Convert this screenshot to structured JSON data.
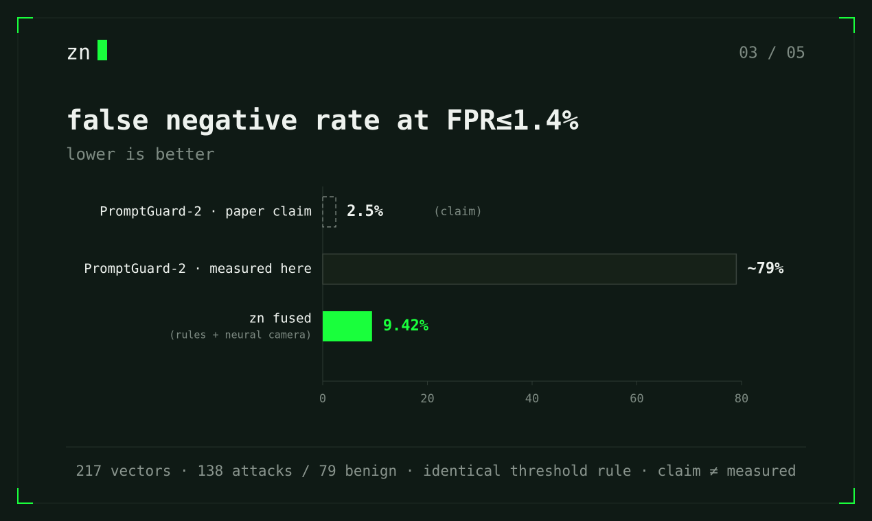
{
  "brand": "zn",
  "page_indicator": "03 / 05",
  "chart_data": {
    "type": "hbar",
    "title": "false negative rate at FPR≤1.4%",
    "subtitle": "lower is better",
    "categories": [
      "PromptGuard-2 · paper claim",
      "PromptGuard-2 · measured here",
      "zn fused"
    ],
    "category_notes": [
      null,
      null,
      "(rules + neural camera)"
    ],
    "values": [
      2.5,
      79,
      9.42
    ],
    "value_labels": [
      "2.5%",
      "~79%",
      "9.42%"
    ],
    "value_notes": [
      "(claim)",
      null,
      null
    ],
    "bar_styles": [
      "dashed",
      "outlined",
      "solid"
    ],
    "colors": [
      "#8a958e",
      "#3a443d",
      "#19ff3c"
    ],
    "xlim": [
      0,
      80
    ],
    "xticks": [
      0,
      20,
      40,
      60,
      80
    ]
  },
  "footer": "217 vectors · 138 attacks / 79 benign · identical threshold rule · claim ≠ measured"
}
